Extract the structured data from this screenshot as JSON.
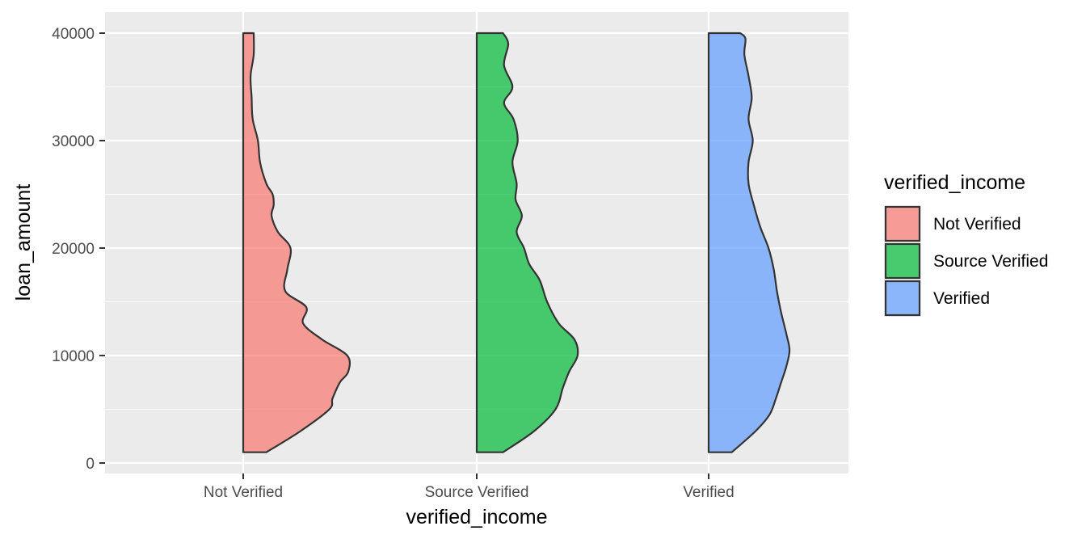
{
  "chart_data": {
    "type": "half-violin",
    "xlabel": "verified_income",
    "ylabel": "loan_amount",
    "categories": [
      "Not Verified",
      "Source Verified",
      "Verified"
    ],
    "ylim": [
      0,
      40000
    ],
    "yticks": [
      0,
      10000,
      20000,
      30000,
      40000
    ],
    "grid": true,
    "legend": {
      "title": "verified_income",
      "position": "right",
      "entries": [
        "Not Verified",
        "Source Verified",
        "Verified"
      ]
    },
    "colors": [
      "#F8766D",
      "#00BA38",
      "#619CFF"
    ],
    "background": "#EBEBEB",
    "series": [
      {
        "name": "Not Verified",
        "density_scale": "relative width (0-1) vs loan_amount",
        "profile": [
          [
            1000,
            0.22
          ],
          [
            3000,
            0.55
          ],
          [
            5000,
            0.82
          ],
          [
            6000,
            0.85
          ],
          [
            7500,
            0.92
          ],
          [
            8500,
            1.0
          ],
          [
            10000,
            0.99
          ],
          [
            11500,
            0.75
          ],
          [
            13000,
            0.57
          ],
          [
            14500,
            0.6
          ],
          [
            16000,
            0.4
          ],
          [
            18000,
            0.42
          ],
          [
            20000,
            0.45
          ],
          [
            21500,
            0.33
          ],
          [
            23000,
            0.27
          ],
          [
            24000,
            0.29
          ],
          [
            25000,
            0.28
          ],
          [
            26000,
            0.22
          ],
          [
            28000,
            0.16
          ],
          [
            30000,
            0.14
          ],
          [
            32000,
            0.09
          ],
          [
            34000,
            0.08
          ],
          [
            36000,
            0.07
          ],
          [
            38000,
            0.1
          ],
          [
            40000,
            0.1
          ]
        ]
      },
      {
        "name": "Source Verified",
        "density_scale": "relative width (0-1) vs loan_amount",
        "profile": [
          [
            1000,
            0.25
          ],
          [
            3000,
            0.55
          ],
          [
            5000,
            0.75
          ],
          [
            7000,
            0.82
          ],
          [
            8500,
            0.88
          ],
          [
            10000,
            0.96
          ],
          [
            11500,
            0.93
          ],
          [
            13000,
            0.78
          ],
          [
            15000,
            0.67
          ],
          [
            17000,
            0.6
          ],
          [
            18500,
            0.5
          ],
          [
            20000,
            0.45
          ],
          [
            21500,
            0.38
          ],
          [
            23000,
            0.43
          ],
          [
            24500,
            0.37
          ],
          [
            26000,
            0.38
          ],
          [
            28000,
            0.34
          ],
          [
            30000,
            0.39
          ],
          [
            32000,
            0.35
          ],
          [
            33500,
            0.26
          ],
          [
            35000,
            0.34
          ],
          [
            37000,
            0.26
          ],
          [
            39000,
            0.3
          ],
          [
            40000,
            0.25
          ]
        ]
      },
      {
        "name": "Verified",
        "density_scale": "relative width (0-1) vs loan_amount",
        "profile": [
          [
            1000,
            0.22
          ],
          [
            3000,
            0.45
          ],
          [
            4500,
            0.58
          ],
          [
            6000,
            0.64
          ],
          [
            7500,
            0.69
          ],
          [
            9000,
            0.74
          ],
          [
            10500,
            0.77
          ],
          [
            12000,
            0.74
          ],
          [
            14000,
            0.69
          ],
          [
            16000,
            0.65
          ],
          [
            18000,
            0.62
          ],
          [
            20000,
            0.57
          ],
          [
            22000,
            0.49
          ],
          [
            24000,
            0.43
          ],
          [
            26000,
            0.38
          ],
          [
            28000,
            0.38
          ],
          [
            30000,
            0.42
          ],
          [
            32000,
            0.38
          ],
          [
            34000,
            0.41
          ],
          [
            36000,
            0.38
          ],
          [
            38000,
            0.34
          ],
          [
            39500,
            0.35
          ],
          [
            40000,
            0.3
          ]
        ]
      }
    ]
  }
}
